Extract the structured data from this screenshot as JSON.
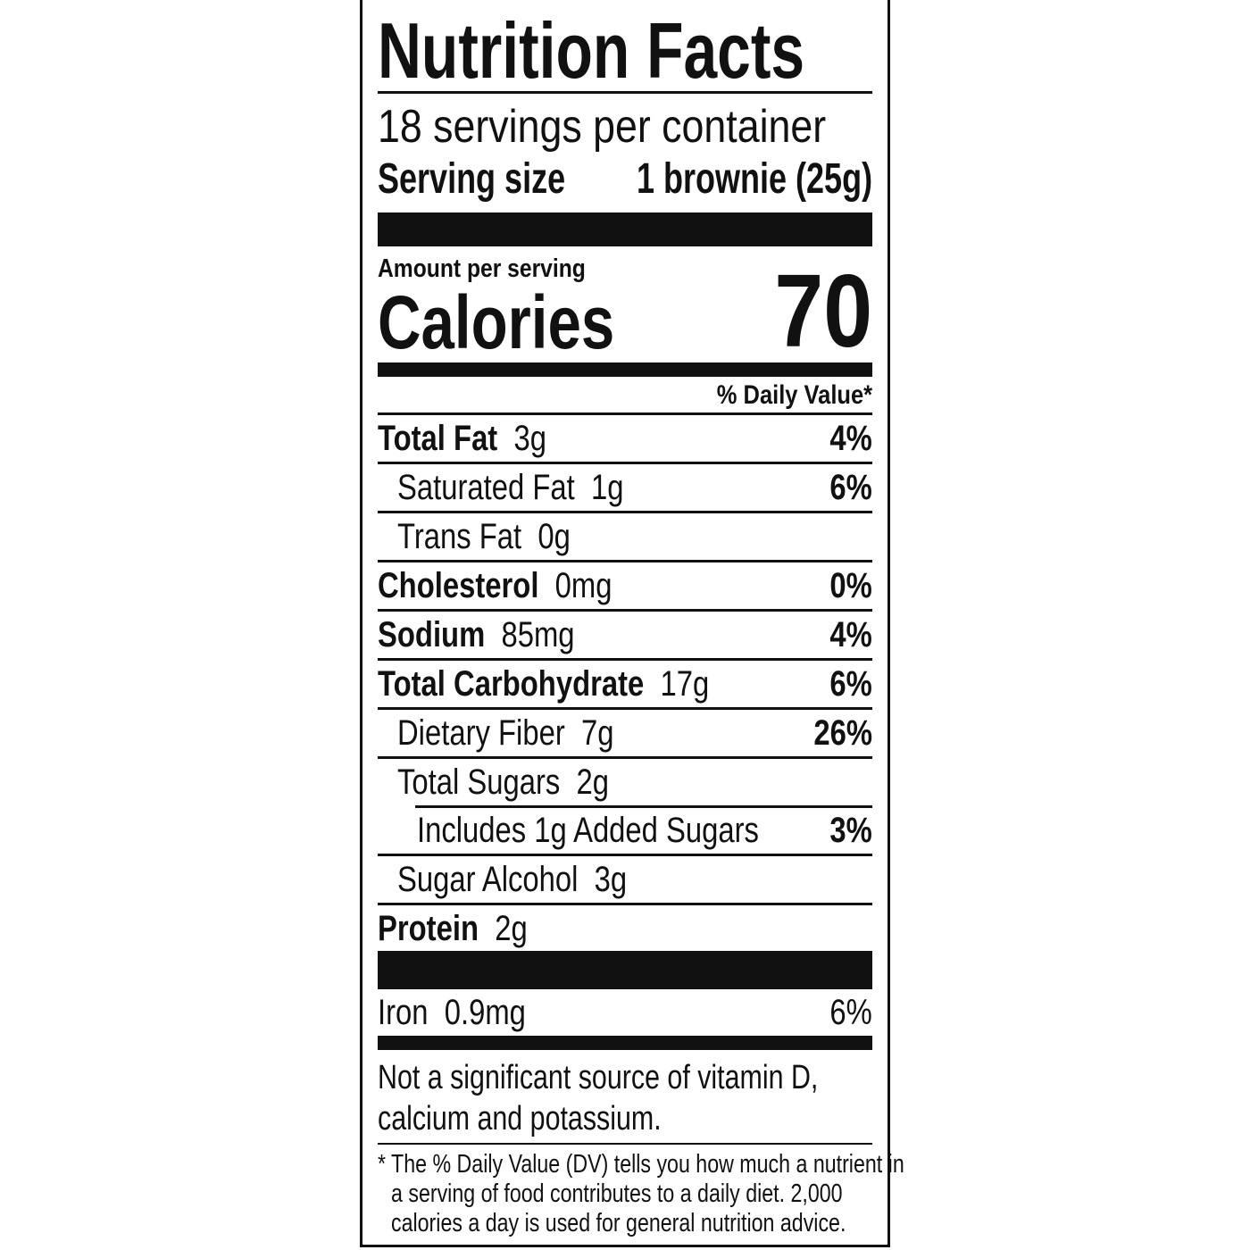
{
  "title": "Nutrition Facts",
  "servings_per_container": "18 servings per container",
  "serving_size_label": "Serving size",
  "serving_size_value": "1 brownie (25g)",
  "amount_per_serving": "Amount per serving",
  "calories_label": "Calories",
  "calories_value": "70",
  "daily_value_header": "% Daily Value*",
  "nutrients": [
    {
      "name": "Total Fat",
      "amount": "3g",
      "dv": "4%"
    },
    {
      "name": "Saturated Fat",
      "amount": "1g",
      "dv": "6%"
    },
    {
      "name": "Trans Fat",
      "amount": "0g",
      "dv": ""
    },
    {
      "name": "Cholesterol",
      "amount": "0mg",
      "dv": "0%"
    },
    {
      "name": "Sodium",
      "amount": "85mg",
      "dv": "4%"
    },
    {
      "name": "Total Carbohydrate",
      "amount": "17g",
      "dv": "6%"
    },
    {
      "name": "Dietary Fiber",
      "amount": "7g",
      "dv": "26%"
    },
    {
      "name": "Total Sugars",
      "amount": "2g",
      "dv": ""
    },
    {
      "name": "Includes 1g Added Sugars",
      "amount": "",
      "dv": "3%"
    },
    {
      "name": "Sugar Alcohol",
      "amount": "3g",
      "dv": ""
    },
    {
      "name": "Protein",
      "amount": "2g",
      "dv": ""
    }
  ],
  "iron": {
    "name": "Iron",
    "amount": "0.9mg",
    "dv": "6%"
  },
  "not_significant": [
    "Not a significant source of vitamin D,",
    "calcium and potassium."
  ],
  "footnote": [
    "* The % Daily Value (DV) tells you how much a nutrient in",
    "a serving of food contributes to a daily diet. 2,000",
    "calories a day is used for general nutrition advice."
  ]
}
